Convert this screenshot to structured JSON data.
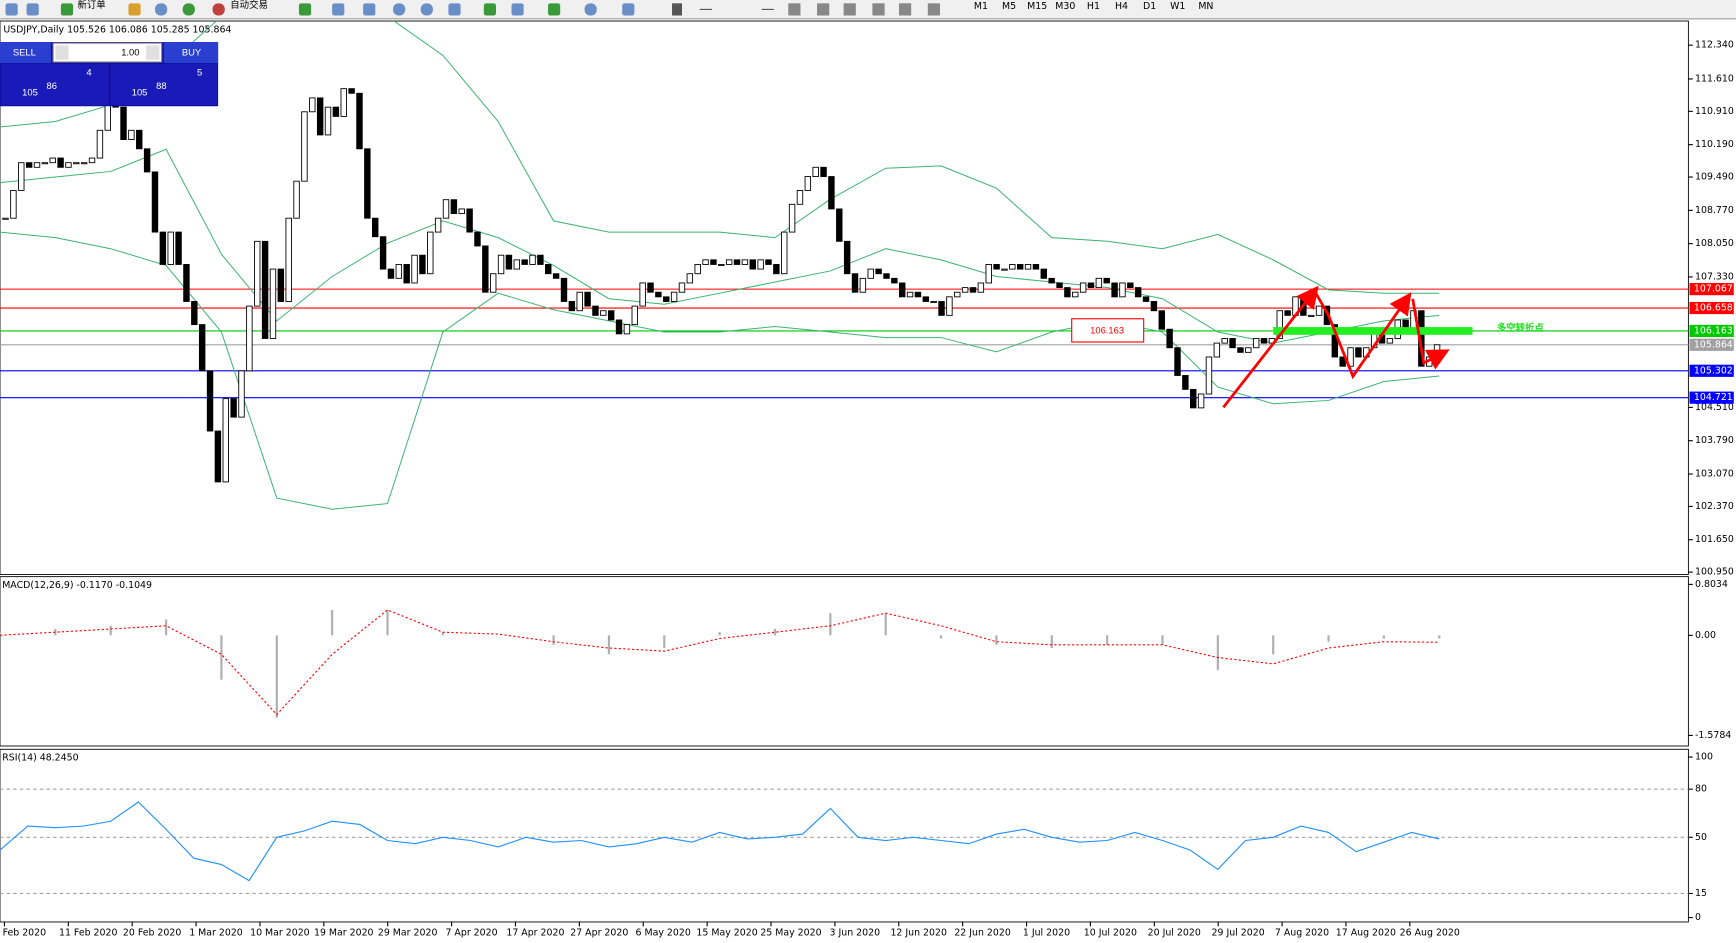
{
  "toolbar": {
    "new_order": "新订单",
    "auto_trading": "自动交易",
    "timeframes": [
      "M1",
      "M5",
      "M15",
      "M30",
      "H1",
      "H4",
      "D1",
      "W1",
      "MN"
    ]
  },
  "trade_panel": {
    "sell": "SELL",
    "buy": "BUY",
    "lots": "1.00",
    "bid_big": "105",
    "bid_main": "86",
    "bid_small": "4",
    "ask_big": "105",
    "ask_main": "88",
    "ask_small": "5"
  },
  "chart": {
    "info": "USDJPY,Daily  105.526 106.086 105.285 105.864",
    "ylim": [
      100.9,
      112.79
    ],
    "yticks": [
      {
        "value": 112.34,
        "label": "112.340"
      },
      {
        "value": 111.61,
        "label": "111.610"
      },
      {
        "value": 110.91,
        "label": "110.910"
      },
      {
        "value": 110.19,
        "label": "110.190"
      },
      {
        "value": 109.49,
        "label": "109.490"
      },
      {
        "value": 108.77,
        "label": "108.770"
      },
      {
        "value": 108.05,
        "label": "108.050"
      },
      {
        "value": 107.33,
        "label": "107.330"
      },
      {
        "value": 104.51,
        "label": "104.510"
      },
      {
        "value": 103.79,
        "label": "103.790"
      },
      {
        "value": 103.07,
        "label": "103.070"
      },
      {
        "value": 102.37,
        "label": "102.370"
      },
      {
        "value": 101.65,
        "label": "101.650"
      },
      {
        "value": 100.95,
        "label": "100.950"
      }
    ],
    "closes": [
      108.6,
      109.2,
      109.8,
      109.7,
      109.8,
      109.8,
      109.9,
      109.7,
      109.8,
      109.8,
      109.8,
      109.9,
      110.5,
      111.6,
      111.0,
      110.3,
      110.5,
      110.1,
      109.6,
      108.3,
      107.6,
      108.3,
      107.6,
      106.8,
      106.3,
      105.3,
      104.0,
      102.9,
      104.7,
      104.3,
      105.3,
      106.7,
      108.1,
      106.0,
      107.5,
      106.8,
      108.6,
      109.4,
      110.9,
      111.2,
      110.4,
      111.0,
      110.8,
      111.4,
      111.3,
      110.1,
      108.6,
      108.2,
      107.5,
      107.3,
      107.6,
      107.2,
      107.8,
      107.4,
      108.3,
      108.6,
      109.0,
      108.7,
      108.8,
      108.3,
      108.0,
      107.0,
      107.4,
      107.8,
      107.5,
      107.7,
      107.6,
      107.8,
      107.6,
      107.4,
      107.3,
      106.8,
      106.6,
      107.0,
      106.7,
      106.5,
      106.6,
      106.4,
      106.1,
      106.3,
      106.7,
      107.2,
      107.0,
      106.9,
      106.8,
      107.0,
      107.2,
      107.4,
      107.6,
      107.7,
      107.6,
      107.6,
      107.7,
      107.6,
      107.7,
      107.5,
      107.7,
      107.6,
      107.4,
      108.3,
      108.9,
      109.2,
      109.5,
      109.7,
      109.5,
      108.8,
      108.1,
      107.4,
      107.0,
      107.3,
      107.5,
      107.4,
      107.3,
      107.2,
      106.9,
      107.0,
      106.9,
      106.8,
      106.8,
      106.5,
      106.9,
      107.0,
      107.1,
      107.0,
      107.2,
      107.6,
      107.5,
      107.5,
      107.6,
      107.5,
      107.6,
      107.5,
      107.3,
      107.2,
      107.1,
      106.9,
      107.0,
      107.2,
      107.1,
      107.3,
      107.2,
      106.9,
      107.2,
      107.1,
      106.9,
      106.8,
      106.6,
      106.2,
      105.8,
      105.2,
      104.9,
      104.5,
      104.8,
      105.6,
      105.9,
      106.0,
      105.8,
      105.7,
      105.8,
      106.0,
      105.9,
      106.0,
      106.6,
      106.5,
      106.9,
      106.5,
      106.5,
      106.7,
      106.3,
      105.6,
      105.4,
      105.8,
      105.6,
      105.8,
      106.1,
      105.9,
      106.0,
      106.4,
      106.2,
      106.6,
      105.4,
      105.6,
      105.864
    ],
    "bands": [
      {
        "color": "#3cb371",
        "values": [
          110.57,
          110.69,
          111.05,
          111.89,
          112.96,
          113.08,
          113.08,
          112.96,
          112.12,
          110.69,
          108.54,
          108.3,
          108.3,
          108.3,
          108.18,
          109.01,
          109.68,
          109.73,
          109.25,
          108.18,
          108.1,
          107.94,
          108.25,
          107.7,
          107.05,
          106.98,
          106.98
        ]
      },
      {
        "color": "#3cb371",
        "values": [
          109.37,
          109.49,
          109.61,
          110.09,
          107.82,
          106.38,
          107.34,
          108.06,
          108.54,
          108.18,
          107.58,
          106.86,
          106.74,
          106.98,
          107.22,
          107.46,
          107.94,
          107.7,
          107.34,
          107.22,
          107.1,
          106.86,
          106.14,
          105.9,
          106.14,
          106.38,
          106.5
        ]
      },
      {
        "color": "#3cb371",
        "values": [
          108.3,
          108.18,
          107.94,
          107.58,
          106.14,
          102.55,
          102.31,
          102.43,
          106.14,
          106.98,
          106.62,
          106.38,
          106.14,
          106.14,
          106.26,
          106.14,
          106.02,
          106.02,
          105.71,
          106.14,
          106.38,
          106.14,
          104.95,
          104.59,
          104.66,
          105.07,
          105.19
        ]
      }
    ],
    "levels": [
      {
        "value": 107.067,
        "label": "107.067",
        "color": "#ff0000"
      },
      {
        "value": 106.658,
        "label": "106.658",
        "color": "#ff0000"
      },
      {
        "value": 106.163,
        "label": "106.163",
        "color": "#00c800"
      },
      {
        "value": 105.864,
        "label": "105.864",
        "color": "#a0a0a0"
      },
      {
        "value": 105.302,
        "label": "105.302",
        "color": "#0000ff"
      },
      {
        "value": 104.721,
        "label": "104.721",
        "color": "#0000ff"
      }
    ],
    "annotation_price": "106.163",
    "annotation_text": "多空转折点"
  },
  "macd": {
    "info": "MACD(12,26,9) -0.1170 -0.1049",
    "ylim": [
      -1.745,
      0.908
    ],
    "yticks": [
      0.8034,
      {
        "value": 0,
        "label": "0.00"
      },
      -1.5784
    ],
    "histogram": [
      0.05,
      0.1,
      0.15,
      0.25,
      -0.7,
      -1.3,
      0.4,
      0.4,
      0.05,
      0.0,
      -0.15,
      -0.3,
      -0.2,
      0.05,
      0.1,
      0.35,
      0.35,
      -0.05,
      -0.15,
      -0.2,
      -0.15,
      -0.15,
      -0.55,
      -0.3,
      -0.1,
      -0.05,
      -0.05
    ],
    "signal": [
      0.0,
      0.05,
      0.1,
      0.15,
      -0.3,
      -1.25,
      -0.3,
      0.4,
      0.05,
      0.02,
      -0.1,
      -0.2,
      -0.25,
      -0.05,
      0.05,
      0.15,
      0.35,
      0.15,
      -0.1,
      -0.15,
      -0.15,
      -0.15,
      -0.35,
      -0.45,
      -0.2,
      -0.1,
      -0.11
    ]
  },
  "rsi": {
    "info": "RSI(14) 48.2450",
    "ylim": [
      0,
      100
    ],
    "yticks": [
      100,
      80,
      50,
      15,
      0
    ],
    "values": [
      42,
      57,
      56,
      57,
      60,
      72,
      55,
      37,
      33,
      23,
      50,
      54,
      60,
      58,
      48,
      46,
      50,
      48,
      44,
      50,
      47,
      48,
      44,
      46,
      50,
      47,
      53,
      49,
      50,
      52,
      68,
      50,
      48,
      50,
      48,
      46,
      52,
      55,
      50,
      47,
      48,
      53,
      48,
      42,
      30,
      48,
      50,
      57,
      53,
      41,
      47,
      53,
      49
    ]
  },
  "dates": [
    "Feb 2020",
    "11 Feb 2020",
    "20 Feb 2020",
    "1 Mar 2020",
    "10 Mar 2020",
    "19 Mar 2020",
    "29 Mar 2020",
    "7 Apr 2020",
    "17 Apr 2020",
    "27 Apr 2020",
    "6 May 2020",
    "15 May 2020",
    "25 May 2020",
    "3 Jun 2020",
    "12 Jun 2020",
    "22 Jun 2020",
    "1 Jul 2020",
    "10 Jul 2020",
    "20 Jul 2020",
    "29 Jul 2020",
    "7 Aug 2020",
    "17 Aug 2020",
    "26 Aug 2020"
  ]
}
